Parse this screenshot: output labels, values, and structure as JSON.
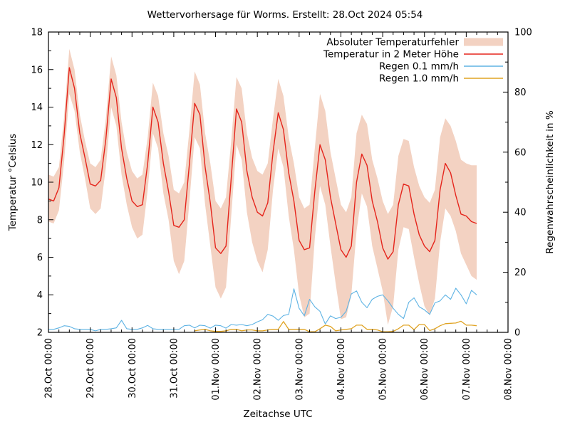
{
  "chart_data": {
    "type": "line",
    "title": "Wettervorhersage für Worms. Erstellt: 28.Oct 2024 05:54",
    "xlabel": "Zeitachse UTC",
    "ylabel": "Temperatur °Celsius",
    "y2label": "Regenwahrscheinlichkeit in %",
    "grid": false,
    "legend_position": "top-right-inside",
    "x_axis": {
      "unit": "hours since 28.Oct 2024 00:00 UTC",
      "range_hours": [
        0,
        264
      ],
      "major_tick_every_hours": 24,
      "minor_tick_every_hours": 6,
      "tick_labels": [
        "28.Oct 00:00",
        "29.Oct 00:00",
        "30.Oct 00:00",
        "31.Oct 00:00",
        "01.Nov 00:00",
        "02.Nov 00:00",
        "03.Nov 00:00",
        "04.Nov 00:00",
        "05.Nov 00:00",
        "06.Nov 00:00",
        "07.Nov 00:00",
        "08.Nov 00:00"
      ]
    },
    "y_axis": {
      "label": "Temperatur °Celsius",
      "range": [
        2,
        18
      ],
      "major_ticks": [
        2,
        4,
        6,
        8,
        10,
        12,
        14,
        16,
        18
      ],
      "minor_tick_step": 1
    },
    "y2_axis": {
      "label": "Regenwahrscheinlichkeit in %",
      "range": [
        0,
        100
      ],
      "major_ticks": [
        0,
        20,
        40,
        60,
        80,
        100
      ],
      "minor_tick_step": 10
    },
    "colors": {
      "error_band": "#f3d2c2",
      "temperature": "#e5251c",
      "rain_0_1": "#5eb3e4",
      "rain_1_0": "#e0a322",
      "axis": "#000000"
    },
    "legend": [
      {
        "label": "Absoluter Temperaturfehler",
        "sample": "band",
        "color": "#f3d2c2"
      },
      {
        "label": "Temperatur in 2 Meter Höhe",
        "sample": "line",
        "color": "#e5251c"
      },
      {
        "label": "Regen 0.1 mm/h",
        "sample": "line",
        "color": "#5eb3e4"
      },
      {
        "label": "Regen 1.0 mm/h",
        "sample": "line",
        "color": "#e0a322"
      }
    ],
    "series": {
      "hours": [
        0,
        3,
        6,
        9,
        12,
        15,
        18,
        21,
        24,
        27,
        30,
        33,
        36,
        39,
        42,
        45,
        48,
        51,
        54,
        57,
        60,
        63,
        66,
        69,
        72,
        75,
        78,
        81,
        84,
        87,
        90,
        93,
        96,
        99,
        102,
        105,
        108,
        111,
        114,
        117,
        120,
        123,
        126,
        129,
        132,
        135,
        138,
        141,
        144,
        147,
        150,
        153,
        156,
        159,
        162,
        165,
        168,
        171,
        174,
        177,
        180,
        183,
        186,
        189,
        192,
        195,
        198,
        201,
        204,
        207,
        210,
        213,
        216,
        219,
        222,
        225,
        228,
        231,
        234,
        237,
        240,
        243,
        246
      ],
      "temperature_2m_c": [
        9.1,
        9.0,
        9.7,
        12.5,
        16.1,
        15.0,
        12.6,
        11.3,
        9.9,
        9.8,
        10.1,
        12.3,
        15.5,
        14.5,
        11.8,
        10.2,
        9.0,
        8.7,
        8.8,
        11.0,
        14.0,
        13.2,
        11.0,
        9.5,
        7.7,
        7.6,
        8.0,
        11.0,
        14.2,
        13.6,
        10.8,
        8.9,
        6.5,
        6.2,
        6.6,
        10.2,
        13.9,
        13.2,
        10.6,
        9.2,
        8.4,
        8.2,
        8.9,
        11.6,
        13.7,
        12.8,
        10.5,
        9.0,
        6.9,
        6.4,
        6.5,
        9.5,
        12.0,
        11.2,
        9.2,
        7.8,
        6.4,
        6.0,
        6.6,
        10.0,
        11.5,
        10.9,
        9.0,
        7.9,
        6.5,
        5.9,
        6.3,
        8.8,
        9.9,
        9.8,
        8.3,
        7.2,
        6.6,
        6.3,
        6.9,
        9.6,
        11.0,
        10.5,
        9.3,
        8.3,
        8.2,
        7.9,
        7.8
      ],
      "error_band_upper_c": [
        10.4,
        10.3,
        10.8,
        13.5,
        17.1,
        16.0,
        13.6,
        12.2,
        11.0,
        10.8,
        11.2,
        13.4,
        16.7,
        15.7,
        13.2,
        11.6,
        10.6,
        10.2,
        10.4,
        12.4,
        15.3,
        14.6,
        12.6,
        11.4,
        9.6,
        9.4,
        10.0,
        12.8,
        15.9,
        15.2,
        12.6,
        11.0,
        9.0,
        8.6,
        9.2,
        12.2,
        15.6,
        15.0,
        12.6,
        11.3,
        10.6,
        10.4,
        11.0,
        13.4,
        15.5,
        14.6,
        12.4,
        11.0,
        9.2,
        8.6,
        8.8,
        11.8,
        14.7,
        13.8,
        11.6,
        10.2,
        8.8,
        8.4,
        9.2,
        12.6,
        13.6,
        13.1,
        11.2,
        10.2,
        9.0,
        8.3,
        8.8,
        11.4,
        12.3,
        12.2,
        10.8,
        9.8,
        9.2,
        8.9,
        9.6,
        12.4,
        13.4,
        13.0,
        12.2,
        11.2,
        11.0,
        10.9,
        10.9
      ],
      "error_band_lower_c": [
        7.9,
        7.8,
        8.5,
        11.1,
        14.7,
        13.8,
        11.6,
        10.2,
        8.6,
        8.3,
        8.6,
        10.8,
        14.0,
        13.0,
        10.4,
        8.8,
        7.6,
        7.0,
        7.2,
        9.6,
        12.6,
        11.8,
        9.4,
        8.0,
        5.8,
        5.1,
        5.8,
        9.0,
        12.4,
        11.8,
        8.8,
        6.6,
        4.4,
        3.8,
        4.4,
        8.2,
        12.0,
        11.2,
        8.4,
        6.8,
        5.8,
        5.2,
        6.4,
        9.6,
        11.8,
        10.8,
        8.2,
        6.4,
        4.0,
        2.8,
        3.0,
        7.0,
        9.8,
        8.8,
        6.6,
        4.6,
        2.7,
        2.8,
        4.0,
        7.4,
        9.4,
        8.7,
        6.6,
        5.4,
        4.2,
        2.4,
        3.4,
        6.4,
        7.6,
        7.5,
        6.0,
        4.6,
        3.4,
        2.9,
        3.8,
        6.8,
        8.6,
        8.2,
        7.4,
        6.2,
        5.6,
        5.0,
        4.8
      ],
      "rain_probability_0_1mmh_pct": [
        1.0,
        1.0,
        1.5,
        2.2,
        2.0,
        1.2,
        1.0,
        1.0,
        1.0,
        0.5,
        1.0,
        1.0,
        1.2,
        1.5,
        4.0,
        1.2,
        1.0,
        1.0,
        1.5,
        2.3,
        1.2,
        1.0,
        1.0,
        1.0,
        1.0,
        1.0,
        2.2,
        2.4,
        1.5,
        2.4,
        2.2,
        1.4,
        2.4,
        2.2,
        1.4,
        2.6,
        2.4,
        2.6,
        2.2,
        2.6,
        3.5,
        4.2,
        6.0,
        5.4,
        4.0,
        5.6,
        6.0,
        14.5,
        8.0,
        5.5,
        11.0,
        8.5,
        7.0,
        2.8,
        5.5,
        4.6,
        5.0,
        7.0,
        12.8,
        13.8,
        10.0,
        8.2,
        11.0,
        12.0,
        12.5,
        10.5,
        8.0,
        6.0,
        4.6,
        10.0,
        11.5,
        8.5,
        7.5,
        6.0,
        9.8,
        10.5,
        12.5,
        11.0,
        14.7,
        12.5,
        9.5,
        14.0,
        12.5
      ],
      "rain_probability_1_0mmh_pct": [
        null,
        null,
        null,
        null,
        null,
        null,
        null,
        null,
        null,
        null,
        null,
        null,
        null,
        null,
        null,
        null,
        null,
        null,
        null,
        null,
        null,
        null,
        null,
        null,
        null,
        null,
        null,
        null,
        0.5,
        0.8,
        1.0,
        0.5,
        0.3,
        0.3,
        0.5,
        1.0,
        1.0,
        0.5,
        0.8,
        0.8,
        0.5,
        0.5,
        0.8,
        1.0,
        1.0,
        3.6,
        1.0,
        1.0,
        1.0,
        1.0,
        0.2,
        0.2,
        1.2,
        2.4,
        2.0,
        0.5,
        0.8,
        1.0,
        1.2,
        2.4,
        2.4,
        1.0,
        1.0,
        0.8,
        0.2,
        0.2,
        0.3,
        1.2,
        2.4,
        2.4,
        0.9,
        2.6,
        2.6,
        0.6,
        1.2,
        2.2,
        2.9,
        3.0,
        3.1,
        3.7,
        2.4,
        2.4,
        2.2
      ]
    }
  }
}
